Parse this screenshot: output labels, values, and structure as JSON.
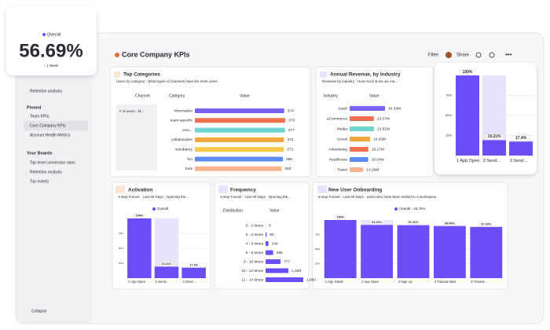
{
  "overall_card": {
    "legend": "Overall",
    "value": 56.69,
    "value_label": "56.69%",
    "note": "↑ 1 Week"
  },
  "sidebar": {
    "items": [
      "Retention analysis"
    ],
    "pinned": "Pinned",
    "pinned_items": [
      "Team KPIs",
      "Core Company KPIs",
      "Account Health Metrics"
    ],
    "boards": "Your Boards",
    "board_items": [
      "Top level conversion rates",
      "Retention analysis",
      "Top events"
    ],
    "collapse": "Collapse"
  },
  "header": {
    "title": "Core Company KPIs",
    "filter": "Filter",
    "share": "Share"
  },
  "top_categories": {
    "title": "Top Categories",
    "subtitle": "Users by category · What types of channels have the most users",
    "row_header": "# of users - M...",
    "columns": [
      "Channel",
      "Category",
      "Value"
    ],
    "categories": [
      "informative",
      "team-specific",
      "cmo...",
      "collaborative",
      "mandatory",
      "fun",
      "bots"
    ],
    "values": [
      374,
      378,
      377,
      373,
      372,
      368,
      363
    ],
    "colors": [
      "#7b61f8",
      "#f0704f",
      "#6fd3d0",
      "#f5a53a",
      "#f7c948",
      "#5b8def",
      "#f9b38f"
    ]
  },
  "annual_revenue": {
    "title": "Annual Revenue, by Industry",
    "subtitle": "Revenue by industry · How much $ are we ma...",
    "columns": [
      "Industry",
      "Value"
    ],
    "categories": [
      "SaaS",
      "eCommerce",
      "Media",
      "Social",
      "Advertising",
      "Healthcare",
      "Travel"
    ],
    "values": [
      34330000,
      23570000,
      23610000,
      19930000,
      18170000,
      18040000,
      13260000
    ],
    "value_labels": [
      "34.33M",
      "23.57M",
      "23.61M",
      "19.93M",
      "18.17M",
      "18.04M",
      "13.26M"
    ],
    "colors": [
      "#7b61f8",
      "#f0704f",
      "#6fd3d0",
      "#f5a53a",
      "#f0704f",
      "#5b8def",
      "#f9b38f"
    ]
  },
  "activation_zoom": {
    "categories": [
      "1 App Open",
      "2 Send...",
      "3 Send..."
    ],
    "values": [
      100,
      19.21,
      17.4
    ],
    "value_labels": [
      "100%",
      "19.21%",
      "17.4%"
    ],
    "ylim": [
      0,
      100
    ],
    "yticks": [
      {
        "value": 25,
        "label": "25%"
      },
      {
        "value": 50,
        "label": "50%"
      },
      {
        "value": 75,
        "label": "75%"
      }
    ],
    "color": "#6c4cf5"
  },
  "activation": {
    "title": "Activation",
    "subtitle": "3-step Funnel · Last 30 Days · Opening the...",
    "legend": "Overall",
    "categories": [
      "1 App Open",
      "2 Send...",
      "3 Send..."
    ],
    "values": [
      100,
      19.21,
      17.4
    ],
    "value_labels": [
      "100%",
      "19.21%",
      "17.4%"
    ],
    "ylim": [
      0,
      100
    ],
    "yticks": [
      {
        "value": 25,
        "label": "25%"
      },
      {
        "value": 50,
        "label": "50%"
      },
      {
        "value": 75,
        "label": "75%"
      }
    ],
    "color": "#6c4cf5"
  },
  "frequency": {
    "title": "Frequency",
    "subtitle": "3-step Funnel · Last 30 Days · Opening the...",
    "columns": [
      "Distribution",
      "Value"
    ],
    "categories": [
      "0 - 2 times",
      "2 - 4 times",
      "4 - 6 times",
      "6 - 8 times",
      "8 - 10 times",
      "10 - 12 times",
      "12 - 14 times"
    ],
    "values": [
      5,
      54,
      148,
      395,
      777,
      1189,
      1960
    ],
    "value_labels": [
      "5",
      "54",
      "148",
      "395",
      "777",
      "1,189",
      "1,960"
    ],
    "color": "#6c4cf5"
  },
  "onboarding": {
    "title": "New User Onboarding",
    "subtitle": "8-step Funnel · Last 30 Days · users who have been invited to a workspace",
    "legend": "Overall - 46.76%",
    "categories": [
      "1 App Install",
      "2 App Open",
      "3 Sign Up",
      "4 Tutorial Start",
      "5 Tutorial..."
    ],
    "values": [
      100,
      91.42,
      91.01,
      89.49,
      87.93
    ],
    "value_labels": [
      "100%",
      "91.42%",
      "91.01%",
      "89.49%",
      "87.93%"
    ],
    "ylim": [
      0,
      100
    ],
    "yticks": [
      {
        "value": 25,
        "label": "25%"
      },
      {
        "value": 50,
        "label": "50%"
      },
      {
        "value": 75,
        "label": "75%"
      }
    ],
    "color": "#6c4cf5"
  }
}
